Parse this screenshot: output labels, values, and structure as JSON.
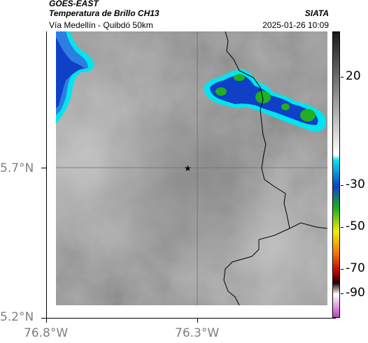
{
  "header": {
    "satellite": "GOES-EAST",
    "product": "Temperatura de Brillo CH13",
    "location": "Vía Medellín - Quibdó 50km",
    "org": "SIATA",
    "datetime": "2025-01-26 10:09"
  },
  "axes": {
    "x_ticks": [
      "76.8°W",
      "76.3°W"
    ],
    "y_ticks": [
      "5.7°N",
      "5.2°N"
    ]
  },
  "colorbar": {
    "ticks": [
      "20",
      "-30",
      "-50",
      "-70",
      "-90"
    ],
    "colors": {
      "warm_top": "#1a1a1a",
      "warm_bottom": "#ffffff",
      "cyan": "#00e5f0",
      "blue": "#1040c8",
      "green": "#20b020",
      "yellow": "#f0f000",
      "orange": "#f07000",
      "red": "#c00000",
      "dark": "#200000",
      "magenta": "#c040c0"
    }
  },
  "map": {
    "marker": "star-icon",
    "background_gray": "#8f8f8f",
    "cloud_colors": [
      "#00e5f0",
      "#1040c8",
      "#20b020"
    ]
  }
}
